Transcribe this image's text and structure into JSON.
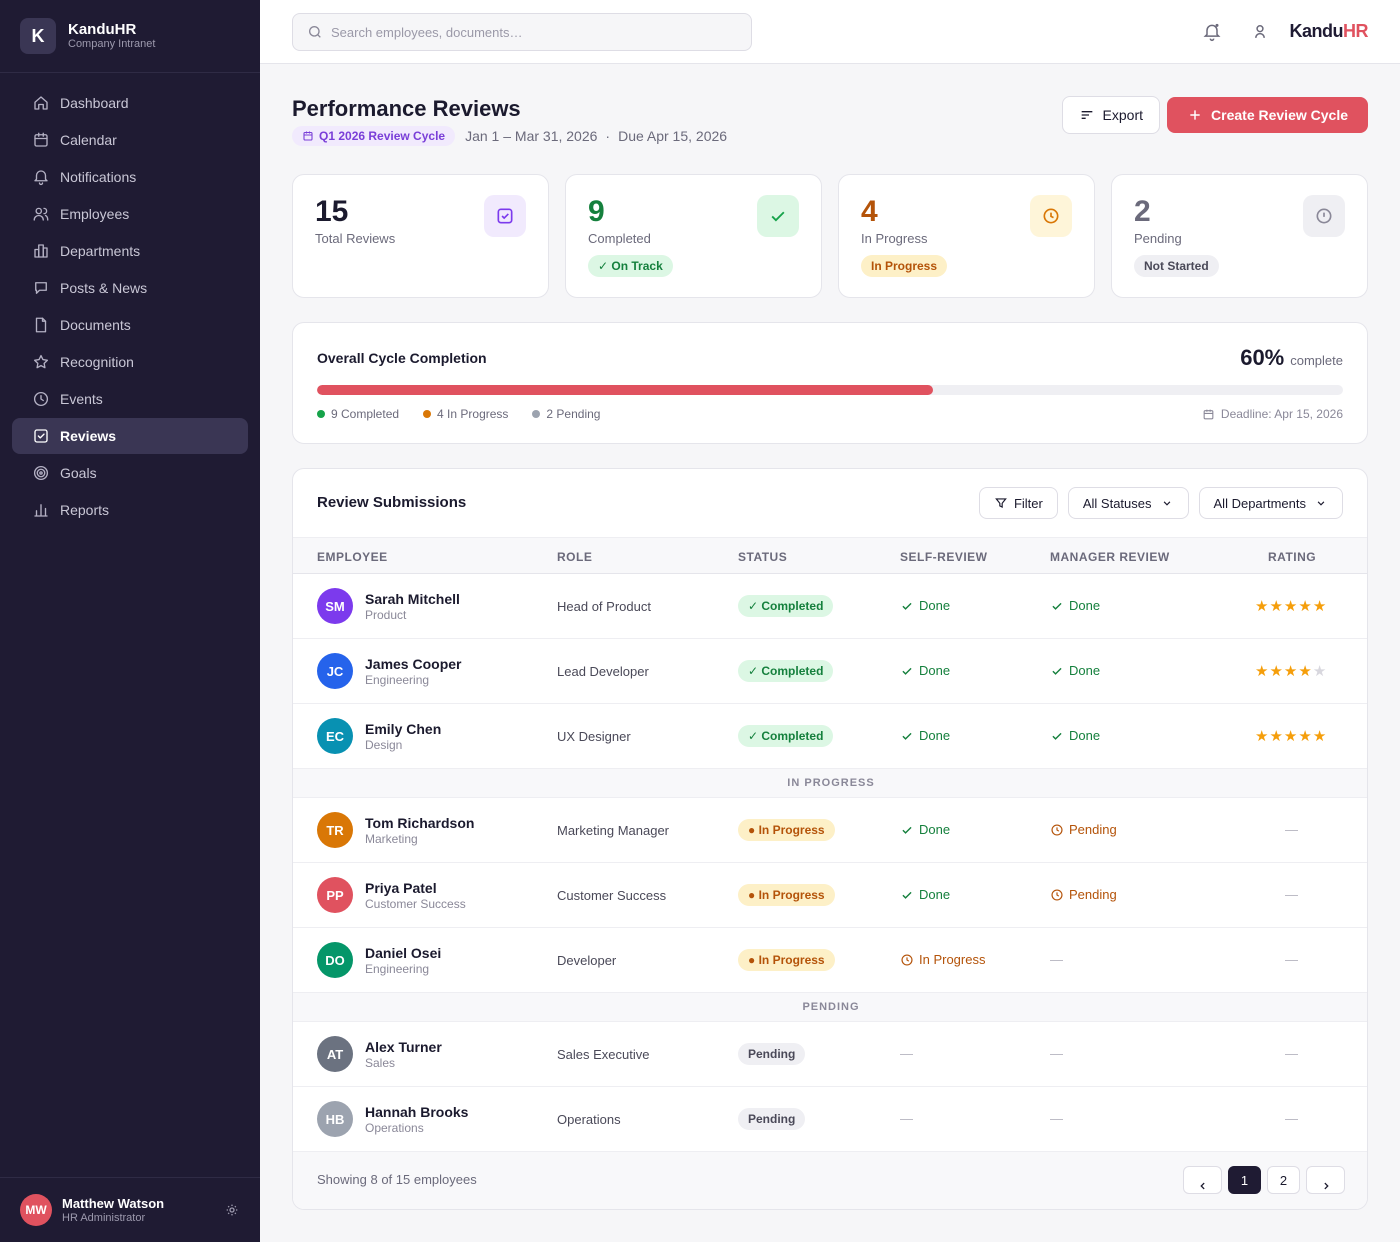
{
  "app": {
    "name": "KanduHR",
    "subtitle": "Company Intranet",
    "logo_letter": "K",
    "accent": "#e0525f"
  },
  "sidebar": {
    "items": [
      {
        "label": "Dashboard",
        "icon": "home-icon"
      },
      {
        "label": "Calendar",
        "icon": "calendar-icon"
      },
      {
        "label": "Notifications",
        "icon": "bell-icon"
      },
      {
        "label": "Employees",
        "icon": "users-icon"
      },
      {
        "label": "Departments",
        "icon": "building-icon"
      },
      {
        "label": "Posts & News",
        "icon": "chat-icon"
      },
      {
        "label": "Documents",
        "icon": "document-icon"
      },
      {
        "label": "Recognition",
        "icon": "star-icon"
      },
      {
        "label": "Events",
        "icon": "clock-icon"
      },
      {
        "label": "Reviews",
        "icon": "check-square-icon",
        "active": true
      },
      {
        "label": "Goals",
        "icon": "target-icon"
      },
      {
        "label": "Reports",
        "icon": "bar-chart-icon"
      }
    ],
    "user": {
      "initials": "MW",
      "name": "Matthew Watson",
      "role": "HR Administrator"
    }
  },
  "topbar": {
    "search_placeholder": "Search employees, documents…",
    "brand_main": "Kandu",
    "brand_accent": "HR"
  },
  "header": {
    "title": "Performance Reviews",
    "cycle_label": "Q1 2026 Review Cycle",
    "date_range": "Jan 1 – Mar 31, 2026",
    "separator": "·",
    "due": "Due Apr 15, 2026",
    "export_label": "Export",
    "create_label": "Create Review Cycle"
  },
  "stats": [
    {
      "value": "15",
      "label": "Total Reviews",
      "badge": "",
      "color": "#1b1a2e",
      "icon": "check-square-icon"
    },
    {
      "value": "9",
      "label": "Completed",
      "badge": "✓ On Track",
      "color": "#15803d",
      "icon": "check-icon"
    },
    {
      "value": "4",
      "label": "In Progress",
      "badge": "In Progress",
      "color": "#b45309",
      "icon": "clock-icon"
    },
    {
      "value": "2",
      "label": "Pending",
      "badge": "Not Started",
      "color": "#6b6a7b",
      "icon": "alert-circle-icon"
    }
  ],
  "completion": {
    "title": "Overall Cycle Completion",
    "percent": 60,
    "percent_label": "60%",
    "complete_word": "complete",
    "legend": [
      {
        "label": "9 Completed",
        "color": "#16a34a"
      },
      {
        "label": "4 In Progress",
        "color": "#d97706"
      },
      {
        "label": "2 Pending",
        "color": "#9ca3af"
      }
    ],
    "deadline": "Deadline: Apr 15, 2026"
  },
  "table": {
    "title": "Review Submissions",
    "filter_label": "Filter",
    "status_select": "All Statuses",
    "dept_select": "All Departments",
    "columns": [
      "EMPLOYEE",
      "ROLE",
      "STATUS",
      "SELF-REVIEW",
      "MANAGER REVIEW",
      "RATING"
    ],
    "groups": {
      "in_progress": "IN PROGRESS",
      "pending": "PENDING"
    },
    "dash": "—",
    "rows": [
      {
        "initials": "SM",
        "color": "#7c3aed",
        "name": "Sarah Mitchell",
        "dept": "Product",
        "role": "Head of Product",
        "status": "✓ Completed",
        "status_type": "completed",
        "self": "Done",
        "self_type": "done",
        "manager": "Done",
        "manager_type": "done",
        "rating": 5
      },
      {
        "initials": "JC",
        "color": "#2563eb",
        "name": "James Cooper",
        "dept": "Engineering",
        "role": "Lead Developer",
        "status": "✓ Completed",
        "status_type": "completed",
        "self": "Done",
        "self_type": "done",
        "manager": "Done",
        "manager_type": "done",
        "rating": 4
      },
      {
        "initials": "EC",
        "color": "#0891b2",
        "name": "Emily Chen",
        "dept": "Design",
        "role": "UX Designer",
        "status": "✓ Completed",
        "status_type": "completed",
        "self": "Done",
        "self_type": "done",
        "manager": "Done",
        "manager_type": "done",
        "rating": 5
      },
      {
        "initials": "TR",
        "color": "#d97706",
        "name": "Tom Richardson",
        "dept": "Marketing",
        "role": "Marketing Manager",
        "status": "● In Progress",
        "status_type": "progress",
        "self": "Done",
        "self_type": "done",
        "manager": "Pending",
        "manager_type": "pending",
        "rating": 0
      },
      {
        "initials": "PP",
        "color": "#e0525f",
        "name": "Priya Patel",
        "dept": "Customer Success",
        "role": "Customer Success",
        "status": "● In Progress",
        "status_type": "progress",
        "self": "Done",
        "self_type": "done",
        "manager": "Pending",
        "manager_type": "pending",
        "rating": 0
      },
      {
        "initials": "DO",
        "color": "#059669",
        "name": "Daniel Osei",
        "dept": "Engineering",
        "role": "Developer",
        "status": "● In Progress",
        "status_type": "progress",
        "self": "In Progress",
        "self_type": "pending",
        "manager": "—",
        "manager_type": "dash",
        "rating": 0
      },
      {
        "initials": "AT",
        "color": "#6b7280",
        "name": "Alex Turner",
        "dept": "Sales",
        "role": "Sales Executive",
        "status": "Pending",
        "status_type": "pending",
        "self": "—",
        "self_type": "dash",
        "manager": "—",
        "manager_type": "dash",
        "rating": 0
      },
      {
        "initials": "HB",
        "color": "#9ca3af",
        "name": "Hannah Brooks",
        "dept": "Operations",
        "role": "Operations",
        "status": "Pending",
        "status_type": "pending",
        "self": "—",
        "self_type": "dash",
        "manager": "—",
        "manager_type": "dash",
        "rating": 0
      }
    ],
    "showing": "Showing 8 of 15 employees",
    "pages": [
      "1",
      "2"
    ],
    "current_page": "1"
  }
}
